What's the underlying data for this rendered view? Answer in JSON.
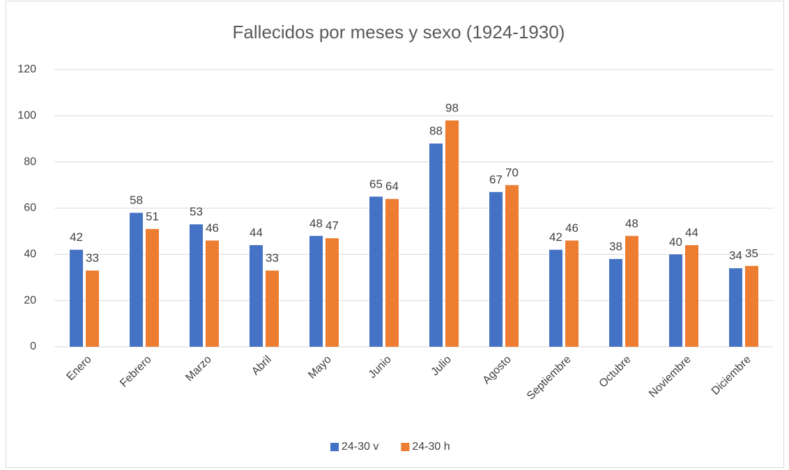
{
  "chart_data": {
    "type": "bar",
    "title": "Fallecidos por meses y sexo (1924-1930)",
    "categories": [
      "Enero",
      "Febrero",
      "Marzo",
      "Abril",
      "Mayo",
      "Junio",
      "Julio",
      "Agosto",
      "Septiembre",
      "Octubre",
      "Noviembre",
      "Diciembre"
    ],
    "series": [
      {
        "name": "24-30 v",
        "color": "#4472c4",
        "values": [
          42,
          58,
          53,
          44,
          48,
          65,
          88,
          67,
          42,
          38,
          40,
          34
        ]
      },
      {
        "name": "24-30 h",
        "color": "#ed7d31",
        "values": [
          33,
          51,
          46,
          33,
          47,
          64,
          98,
          70,
          46,
          48,
          44,
          35
        ]
      }
    ],
    "ylim": [
      0,
      120
    ],
    "yticks": [
      0,
      20,
      40,
      60,
      80,
      100,
      120
    ],
    "grid": true,
    "legend": "bottom"
  }
}
